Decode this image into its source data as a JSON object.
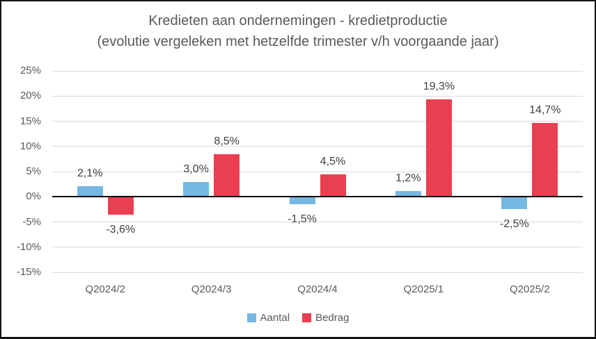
{
  "chart_data": {
    "type": "bar",
    "title": "Kredieten aan ondernemingen - kredietproductie",
    "subtitle": "(evolutie vergeleken met hetzelfde trimester v/h voorgaande jaar)",
    "categories": [
      "Q2024/2",
      "Q2024/3",
      "Q2024/4",
      "Q2025/1",
      "Q2025/2"
    ],
    "series": [
      {
        "name": "Aantal",
        "color": "#75B8E3",
        "values": [
          2.1,
          3.0,
          -1.5,
          1.2,
          -2.5
        ],
        "labels": [
          "2,1%",
          "3,0%",
          "-1,5%",
          "1,2%",
          "-2,5%"
        ]
      },
      {
        "name": "Bedrag",
        "color": "#EA3F50",
        "values": [
          -3.6,
          8.5,
          4.5,
          19.3,
          14.7
        ],
        "labels": [
          "-3,6%",
          "8,5%",
          "4,5%",
          "19,3%",
          "14,7%"
        ]
      }
    ],
    "y_axis": {
      "min": -15,
      "max": 25,
      "step": 5,
      "tick_labels": [
        "25%",
        "20%",
        "15%",
        "10%",
        "5%",
        "0%",
        "-5%",
        "-10%",
        "-15%"
      ]
    },
    "grid": true,
    "legend_position": "bottom",
    "colors": {
      "gridline": "#D9D9D9",
      "axis_line": "#000000",
      "axis_text": "#595959",
      "data_label_text": "#404040",
      "title_text": "#595959",
      "border": "#141414",
      "background": "#FFFFFF"
    }
  }
}
